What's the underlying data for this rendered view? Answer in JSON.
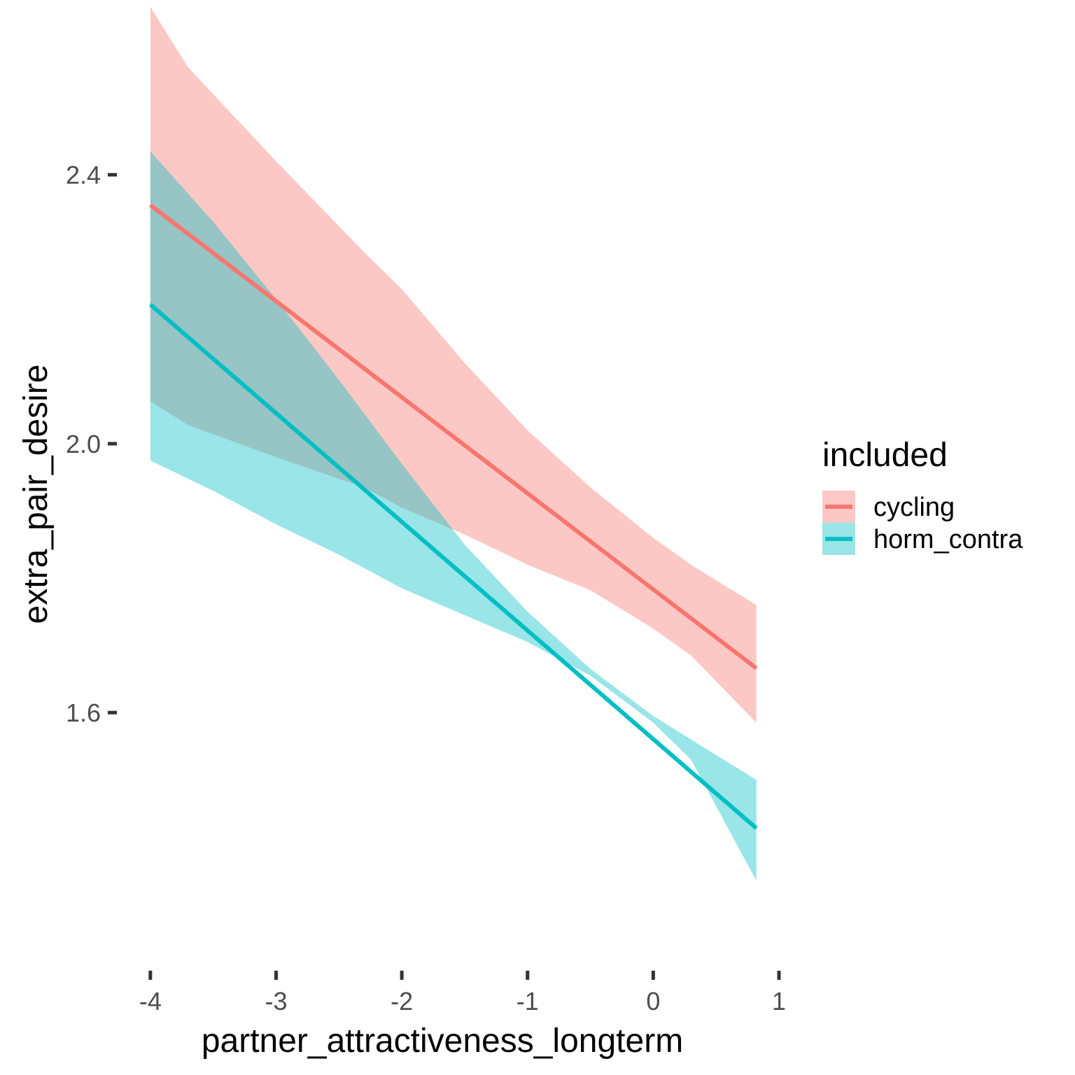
{
  "chart_data": {
    "type": "line",
    "xlabel": "partner_attractiveness_longterm",
    "ylabel": "extra_pair_desire",
    "xlim": [
      -4.45,
      1.1
    ],
    "ylim": [
      1.24,
      2.66
    ],
    "x_ticks": [
      -4,
      -3,
      -2,
      -1,
      0,
      1
    ],
    "x_tick_labels": [
      "-4",
      "-3",
      "-2",
      "-1",
      "0",
      "1"
    ],
    "y_ticks": [
      1.6,
      2.0,
      2.4
    ],
    "y_tick_labels": [
      "1.6",
      "2.0",
      "2.4"
    ],
    "grid": false,
    "legend": {
      "title": "included",
      "position": "right"
    },
    "series": [
      {
        "name": "cycling",
        "color": "#F8766D",
        "fill_opacity": 0.4,
        "line": {
          "x": [
            -4,
            0.82
          ],
          "y": [
            2.355,
            1.666
          ]
        },
        "ribbon": {
          "x": [
            -4,
            -3.7,
            -3,
            -2.3,
            -2,
            -1.5,
            -1,
            -0.5,
            0,
            0.3,
            0.82
          ],
          "upper": [
            2.65,
            2.56,
            2.42,
            2.285,
            2.23,
            2.12,
            2.02,
            1.935,
            1.86,
            1.82,
            1.76
          ],
          "lower": [
            2.063,
            2.028,
            1.98,
            1.935,
            1.905,
            1.865,
            1.82,
            1.782,
            1.725,
            1.685,
            1.585
          ]
        }
      },
      {
        "name": "horm_contra",
        "color": "#00BFC4",
        "fill_opacity": 0.4,
        "line": {
          "x": [
            -4,
            0.82
          ],
          "y": [
            2.207,
            1.428
          ]
        },
        "ribbon": {
          "x": [
            -4,
            -3.5,
            -3,
            -2.5,
            -2,
            -1.5,
            -1,
            -0.5,
            0,
            0.3,
            0.82
          ],
          "upper": [
            2.435,
            2.33,
            2.215,
            2.095,
            1.97,
            1.85,
            1.75,
            1.665,
            1.595,
            1.56,
            1.5
          ],
          "lower": [
            1.975,
            1.93,
            1.88,
            1.835,
            1.785,
            1.745,
            1.705,
            1.655,
            1.585,
            1.53,
            1.35
          ]
        }
      }
    ]
  }
}
